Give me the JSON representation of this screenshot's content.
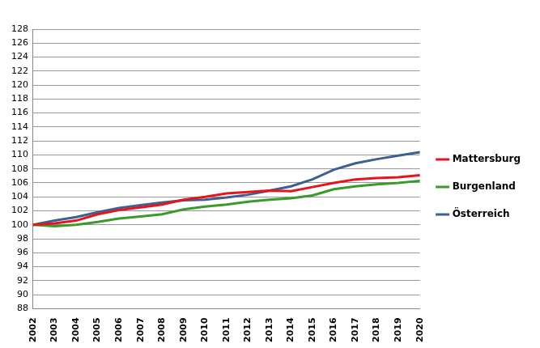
{
  "chart_data": {
    "type": "line",
    "categories": [
      "2002",
      "2003",
      "2004",
      "2005",
      "2006",
      "2007",
      "2008",
      "2009",
      "2010",
      "2011",
      "2012",
      "2013",
      "2014",
      "2015",
      "2016",
      "2017",
      "2018",
      "2019",
      "2020"
    ],
    "series": [
      {
        "name": "Mattersburg",
        "color": "#e8141b",
        "values": [
          100,
          100.2,
          100.6,
          101.5,
          102.1,
          102.5,
          102.9,
          103.6,
          104.0,
          104.5,
          104.7,
          104.9,
          104.8,
          105.4,
          106.0,
          106.5,
          106.7,
          106.8,
          107.1
        ]
      },
      {
        "name": "Burgenland",
        "color": "#3a9b2a",
        "values": [
          100,
          99.8,
          100.0,
          100.4,
          100.9,
          101.2,
          101.5,
          102.2,
          102.6,
          102.9,
          103.3,
          103.6,
          103.8,
          104.2,
          105.1,
          105.5,
          105.8,
          106.0,
          106.3
        ]
      },
      {
        "name": "Österreich",
        "color": "#3b6091",
        "values": [
          100,
          100.6,
          101.1,
          101.8,
          102.4,
          102.8,
          103.2,
          103.5,
          103.6,
          103.9,
          104.3,
          104.9,
          105.5,
          106.5,
          107.9,
          108.8,
          109.4,
          109.9,
          110.4
        ]
      }
    ],
    "ylim": [
      88,
      128
    ],
    "yticks": [
      88,
      90,
      92,
      94,
      96,
      98,
      100,
      102,
      104,
      106,
      108,
      110,
      112,
      114,
      116,
      118,
      120,
      122,
      124,
      126,
      128
    ],
    "grid": true,
    "legend": "right"
  }
}
